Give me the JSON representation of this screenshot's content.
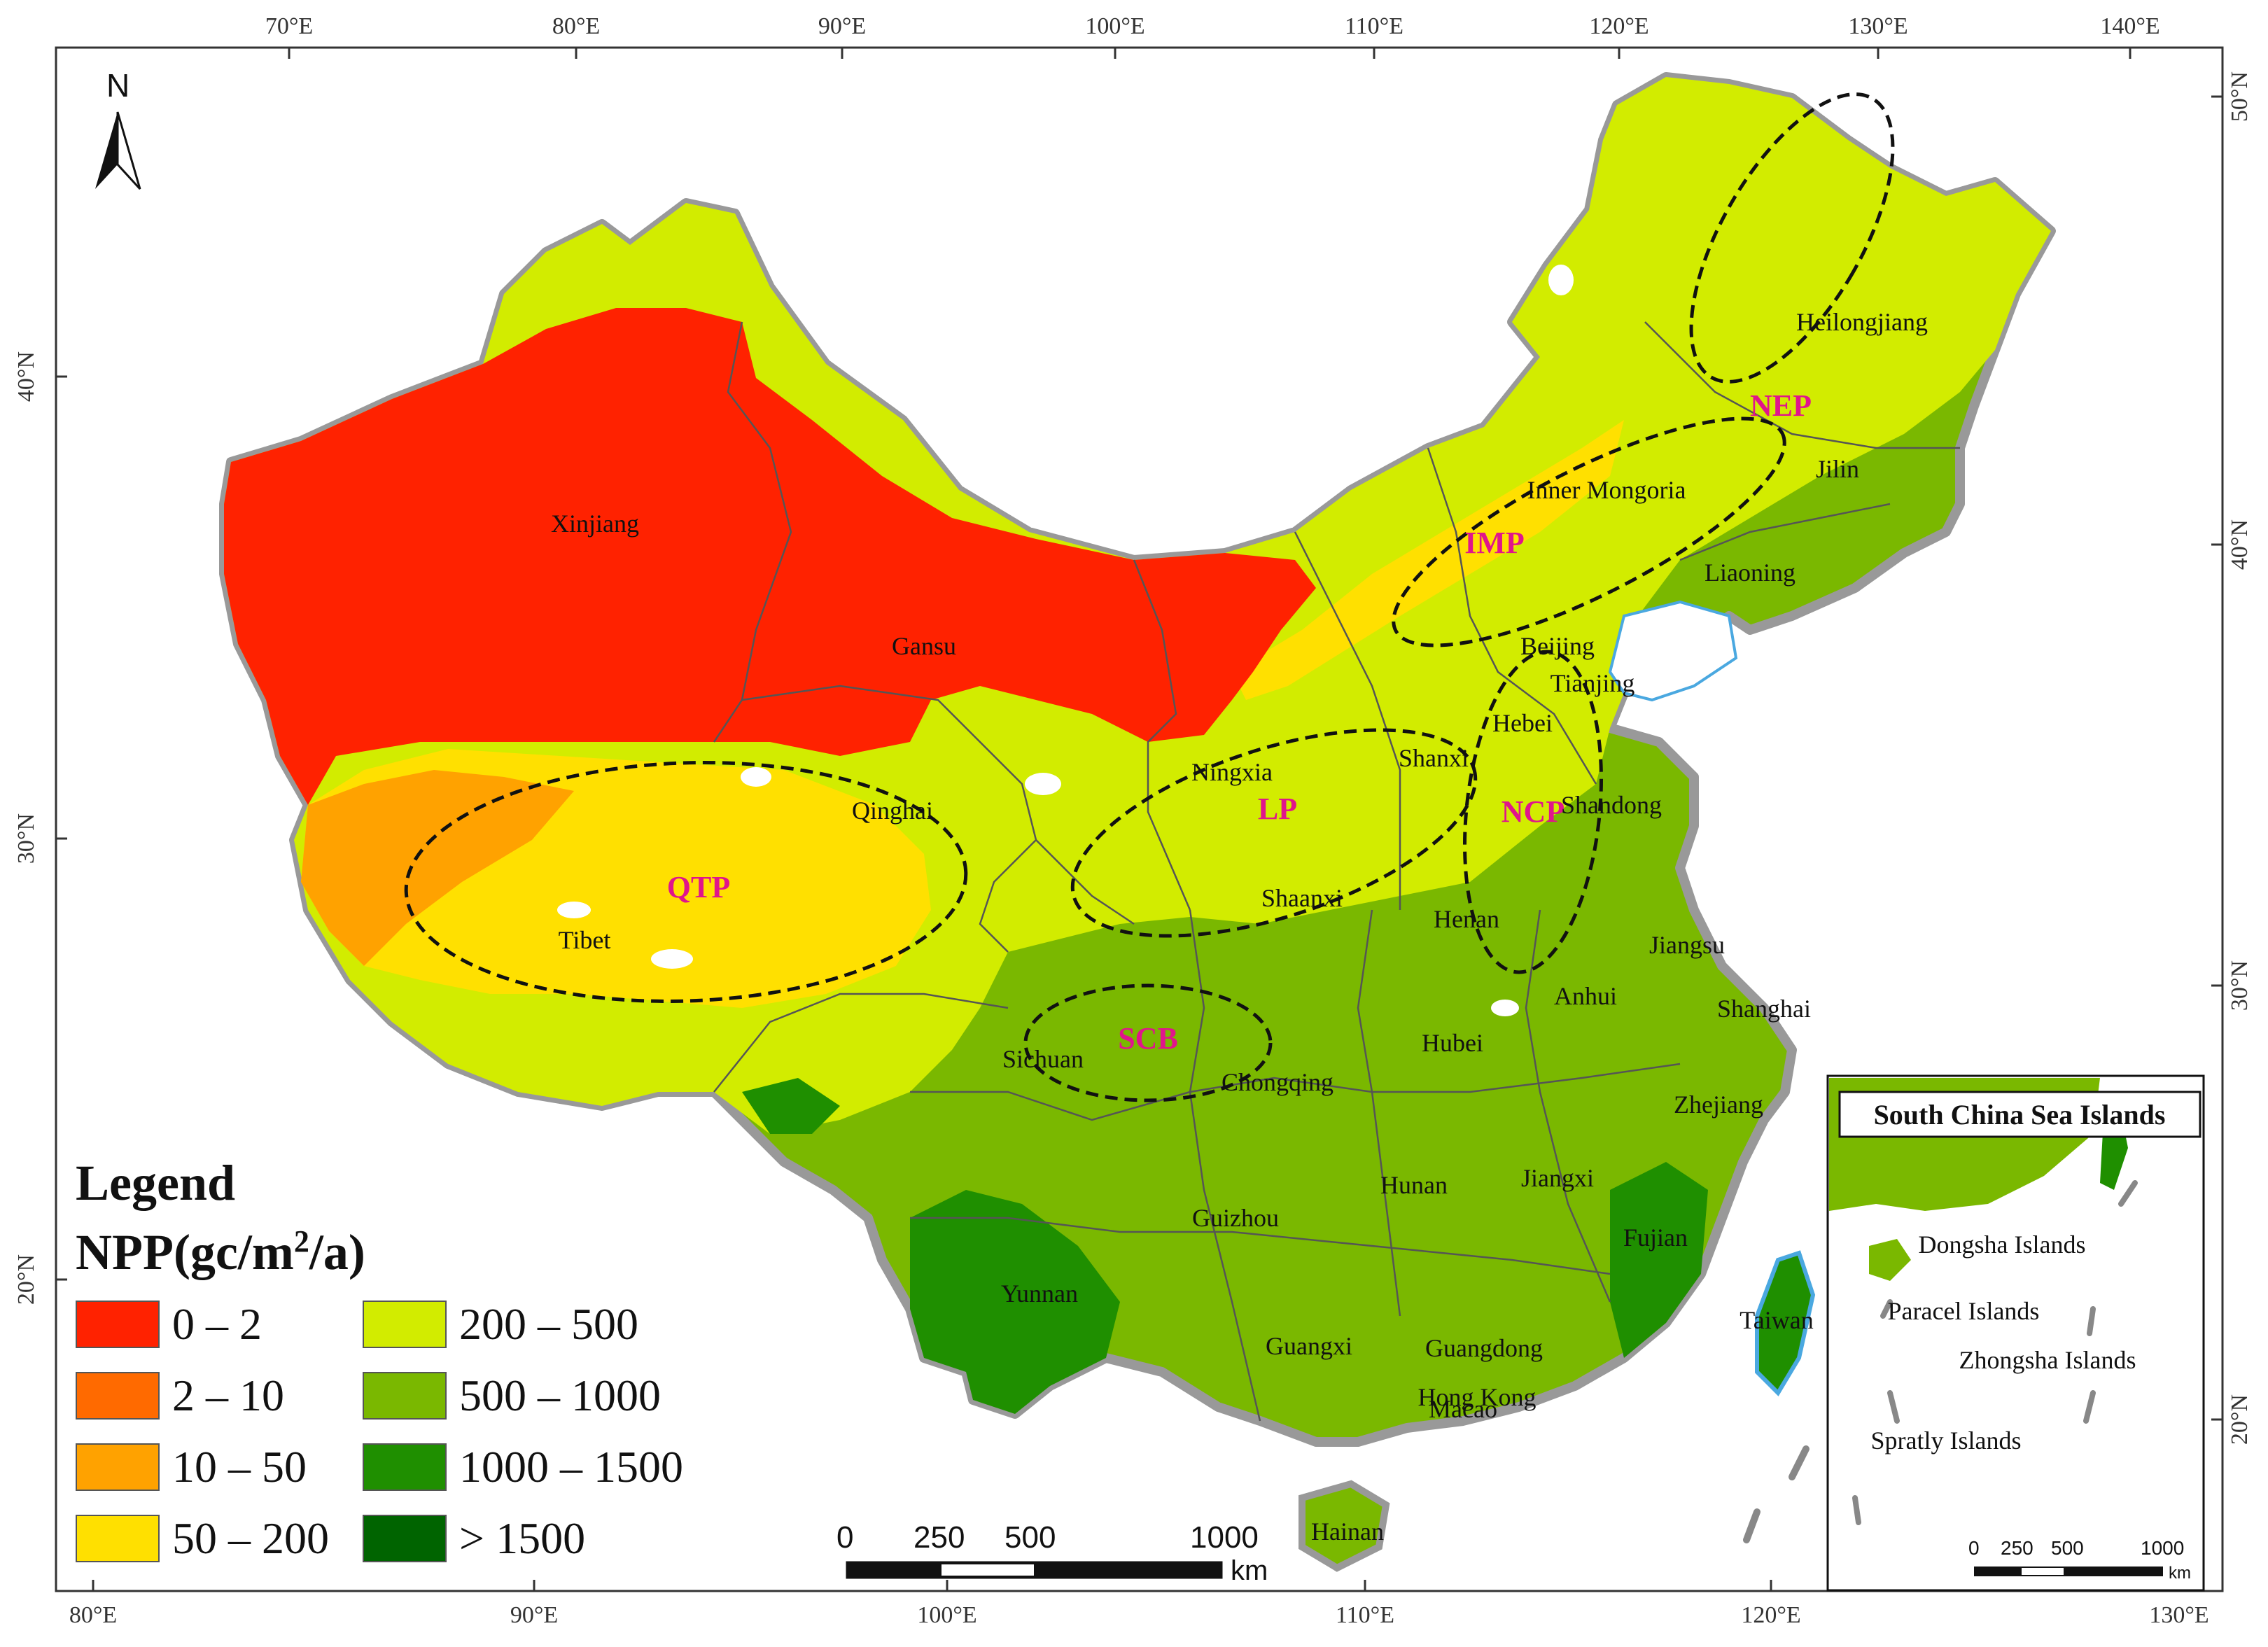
{
  "legend": {
    "heading": "Legend",
    "npp_prefix": "NPP(gc/m",
    "npp_sup": "2",
    "npp_suffix": "/a)",
    "classes": [
      {
        "label": "0 – 2",
        "color": "#ff2200"
      },
      {
        "label": "200 – 500",
        "color": "#d2ec00"
      },
      {
        "label": "2 – 10",
        "color": "#ff6a00"
      },
      {
        "label": "500 – 1000",
        "color": "#7ab800"
      },
      {
        "label": "10 – 50",
        "color": "#ffa200"
      },
      {
        "label": "1000 – 1500",
        "color": "#1f8f00"
      },
      {
        "label": "50 – 200",
        "color": "#ffe000"
      },
      {
        "label": "> 1500",
        "color": "#006400"
      }
    ]
  },
  "top_ticks": [
    "70°E",
    "80°E",
    "90°E",
    "100°E",
    "110°E",
    "120°E",
    "130°E",
    "140°E"
  ],
  "bottom_ticks": [
    "80°E",
    "90°E",
    "100°E",
    "110°E",
    "120°E",
    "130°E"
  ],
  "left_ticks": [
    "40°N",
    "30°N",
    "20°N"
  ],
  "right_ticks": [
    "50°N",
    "40°N",
    "30°N",
    "20°N"
  ],
  "north_label": "N",
  "provinces": {
    "xinjiang": "Xinjiang",
    "gansu": "Gansu",
    "qinghai": "Qinghai",
    "tibet": "Tibet",
    "ningxia": "Ningxia",
    "shanxi": "Shanxi",
    "shaanxi": "Shaanxi",
    "inner_mongolia": "Inner Mongoria",
    "heilongjiang": "Heilongjiang",
    "jilin": "Jilin",
    "liaoning": "Liaoning",
    "beijing": "Beijing",
    "tianjin": "Tianjing",
    "hebei": "Hebei",
    "shandong": "Shandong",
    "henan": "Henan",
    "jiangsu": "Jiangsu",
    "anhui": "Anhui",
    "shanghai": "Shanghai",
    "hubei": "Hubei",
    "sichuan": "Sichuan",
    "chongqing": "Chongqing",
    "zhejiang": "Zhejiang",
    "hunan": "Hunan",
    "jiangxi": "Jiangxi",
    "guizhou": "Guizhou",
    "fujian": "Fujian",
    "yunnan": "Yunnan",
    "guangxi": "Guangxi",
    "guangdong": "Guangdong",
    "hong_kong": "Hong Kong",
    "macao": "Macao",
    "taiwan": "Taiwan",
    "hainan": "Hainan"
  },
  "regions": {
    "nep": "NEP",
    "imp": "IMP",
    "ncp": "NCP",
    "lp": "LP",
    "qtp": "QTP",
    "scb": "SCB"
  },
  "colors": {
    "desert": "#ff2200",
    "arid": "#ffe000",
    "temperate": "#d2ec00",
    "subtropical": "#7ab800",
    "forest": "#1f8f00",
    "dense_forest": "#006400",
    "region_label": "#e0158c",
    "coast": "#4aa8e0"
  },
  "scale_bar": {
    "ticks": [
      "0",
      "250",
      "500",
      "1000"
    ],
    "unit": "km"
  },
  "inset": {
    "title": "South China Sea Islands",
    "islands": [
      "Dongsha Islands",
      "Paracel Islands",
      "Zhongsha Islands",
      "Spratly Islands"
    ],
    "scale_ticks": [
      "0",
      "250",
      "500",
      "1000"
    ],
    "scale_unit": "km"
  }
}
